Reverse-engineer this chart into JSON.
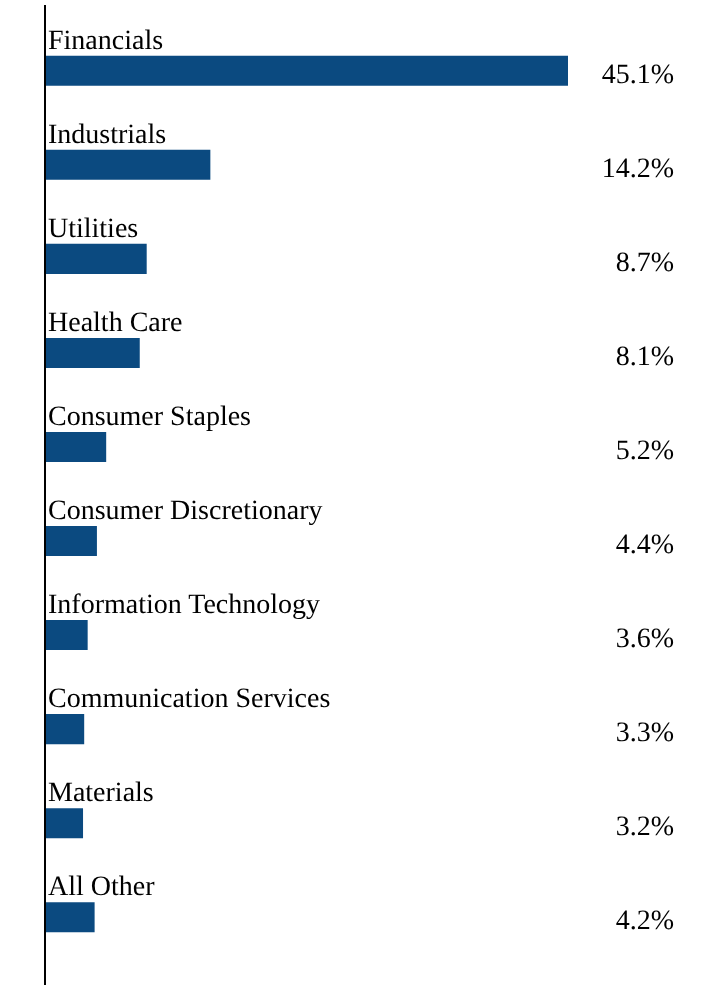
{
  "chart_data": {
    "type": "bar",
    "orientation": "horizontal",
    "categories": [
      "Financials",
      "Industrials",
      "Utilities",
      "Health Care",
      "Consumer Staples",
      "Consumer Discretionary",
      "Information Technology",
      "Communication Services",
      "Materials",
      "All Other"
    ],
    "values": [
      45.1,
      14.2,
      8.7,
      8.1,
      5.2,
      4.4,
      3.6,
      3.3,
      3.2,
      4.2
    ],
    "value_labels": [
      "45.1%",
      "14.2%",
      "8.7%",
      "8.1%",
      "5.2%",
      "4.4%",
      "3.6%",
      "3.3%",
      "3.2%",
      "4.2%"
    ],
    "color": "#0b4a80"
  }
}
